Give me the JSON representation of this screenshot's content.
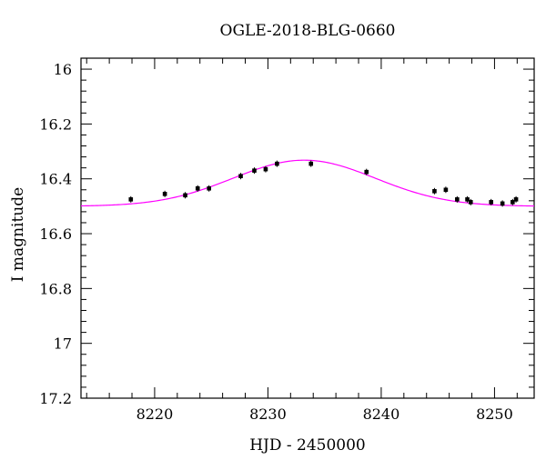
{
  "chart_data": {
    "type": "scatter",
    "title": "OGLE-2018-BLG-0660",
    "xlabel": "HJD - 2450000",
    "ylabel": "I magnitude",
    "xlim": [
      8213.5,
      8253.5
    ],
    "ylim": [
      17.2,
      15.96
    ],
    "y_inverted": true,
    "grid": false,
    "x_ticks": [
      8220,
      8230,
      8240,
      8250
    ],
    "x_tick_labels": [
      "8220",
      "8230",
      "8240",
      "8250"
    ],
    "x_minor_step": 2,
    "y_ticks": [
      16,
      16.2,
      16.4,
      16.6,
      16.8,
      17,
      17.2
    ],
    "y_tick_labels": [
      "16",
      "16.2",
      "16.4",
      "16.6",
      "16.8",
      "17",
      "17.2"
    ],
    "y_minor_step": 0.04,
    "colors": {
      "points": "#000000",
      "model": "#ff00ff"
    },
    "series": [
      {
        "kind": "points",
        "x": [
          8217.9,
          8220.9,
          8222.7,
          8223.8,
          8224.8,
          8227.6,
          8228.8,
          8229.8,
          8230.8,
          8233.8,
          8238.7,
          8244.7,
          8245.7,
          8246.7,
          8247.6,
          8247.9,
          8249.7,
          8250.7,
          8251.6,
          8251.9
        ],
        "y": [
          16.475,
          16.455,
          16.46,
          16.435,
          16.435,
          16.39,
          16.37,
          16.365,
          16.345,
          16.345,
          16.375,
          16.445,
          16.44,
          16.475,
          16.475,
          16.485,
          16.485,
          16.49,
          16.485,
          16.475
        ]
      },
      {
        "kind": "model",
        "model": {
          "baseline": 16.5,
          "peak_time": 8233.2,
          "peak": 16.332,
          "width": 6.3
        }
      }
    ]
  }
}
